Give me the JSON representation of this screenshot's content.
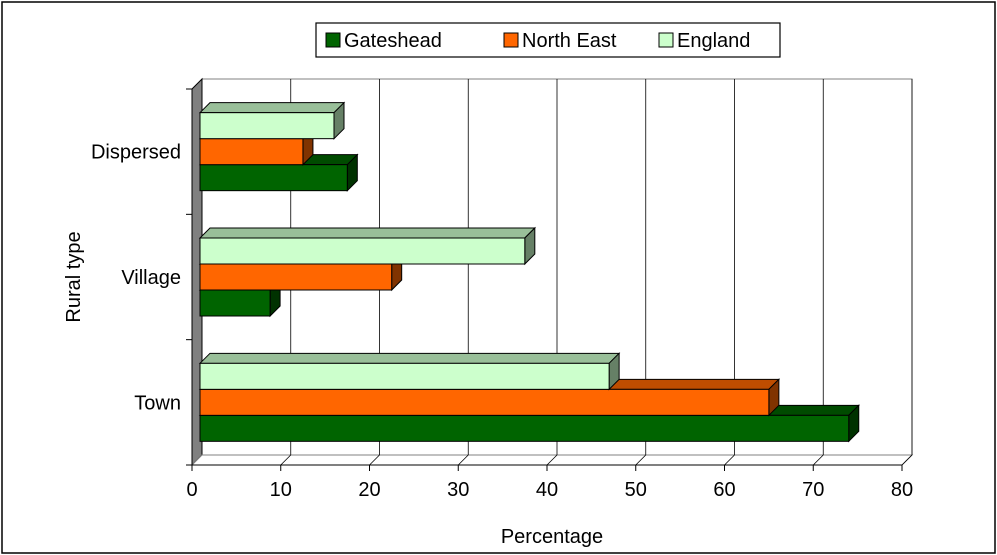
{
  "chart_data": {
    "type": "bar",
    "orientation": "horizontal",
    "title": "",
    "xlabel": "Percentage",
    "ylabel": "Rural type",
    "xlim": [
      0,
      80
    ],
    "xticks": [
      0,
      10,
      20,
      30,
      40,
      50,
      60,
      70,
      80
    ],
    "categories": [
      "Town",
      "Village",
      "Dispersed"
    ],
    "series": [
      {
        "name": "Gateshead",
        "values": [
          74,
          8.8,
          17.5
        ],
        "color": "#006400"
      },
      {
        "name": "North East",
        "values": [
          65,
          22.5,
          12.5
        ],
        "color": "#ff6600"
      },
      {
        "name": "England",
        "values": [
          47,
          37.5,
          16
        ],
        "color": "#ccffcc"
      }
    ],
    "legend_position": "top-center",
    "grid": "vertical",
    "style": "3d"
  }
}
